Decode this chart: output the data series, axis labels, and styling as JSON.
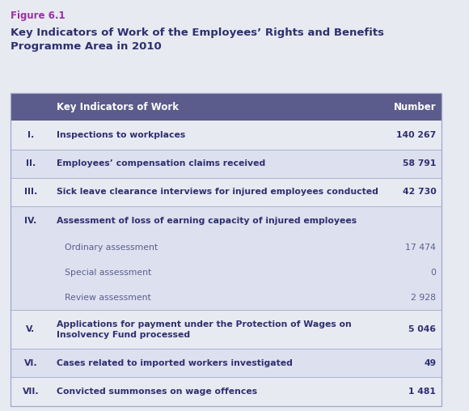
{
  "figure_label": "Figure 6.1",
  "title": "Key Indicators of Work of the Employees’ Rights and Benefits\nProgramme Area in 2010",
  "header_col1": "Key Indicators of Work",
  "header_col2": "Number",
  "header_bg": "#5b5b8c",
  "header_fg": "#ffffff",
  "outer_bg": "#e8eaf2",
  "row_bg_light": "#e8eaf2",
  "row_bg_dark": "#dde0ee",
  "border_color": "#a0a8cc",
  "main_text_color": "#2e3070",
  "sub_text_color": "#5a6090",
  "figure_label_color": "#9b30a0",
  "title_color": "#2e3070",
  "rows": [
    {
      "roman": "I.",
      "desc": "Inspections to workplaces",
      "number": "140 267",
      "bold": true,
      "sub": false,
      "has_number": true,
      "dark": false
    },
    {
      "roman": "II.",
      "desc": "Employees’ compensation claims received",
      "number": "58 791",
      "bold": true,
      "sub": false,
      "has_number": true,
      "dark": true
    },
    {
      "roman": "III.",
      "desc": "Sick leave clearance interviews for injured employees conducted",
      "number": "42 730",
      "bold": true,
      "sub": false,
      "has_number": true,
      "dark": false
    },
    {
      "roman": "IV.",
      "desc": "Assessment of loss of earning capacity of injured employees",
      "number": "",
      "bold": true,
      "sub": false,
      "has_number": false,
      "dark": true
    },
    {
      "roman": "",
      "desc": "Ordinary assessment",
      "number": "17 474",
      "bold": false,
      "sub": true,
      "has_number": true,
      "dark": true
    },
    {
      "roman": "",
      "desc": "Special assessment",
      "number": "0",
      "bold": false,
      "sub": true,
      "has_number": true,
      "dark": true
    },
    {
      "roman": "",
      "desc": "Review assessment",
      "number": "2 928",
      "bold": false,
      "sub": true,
      "has_number": true,
      "dark": true
    },
    {
      "roman": "V.",
      "desc": "Applications for payment under the Protection of Wages on\nInsolvency Fund processed",
      "number": "5 046",
      "bold": true,
      "sub": false,
      "has_number": true,
      "dark": false
    },
    {
      "roman": "VI.",
      "desc": "Cases related to imported workers investigated",
      "number": "49",
      "bold": true,
      "sub": false,
      "has_number": true,
      "dark": true
    },
    {
      "roman": "VII.",
      "desc": "Convicted summonses on wage offences",
      "number": "1 481",
      "bold": true,
      "sub": false,
      "has_number": true,
      "dark": false
    }
  ]
}
